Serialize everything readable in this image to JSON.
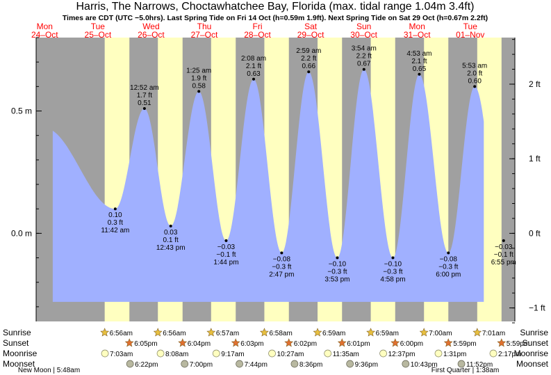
{
  "header": {
    "title": "Harris, The Narrows, Choctawhatchee Bay, Florida (max. tidal range 1.04m 3.4ft)",
    "subtitle": "Times are CDT (UTC −5.0hrs). Last Spring Tide on Fri 14 Oct (h=0.59m 1.9ft). Next Spring Tide on Sat 29 Oct (h=0.67m 2.2ft)"
  },
  "colors": {
    "night": "#a0a0a0",
    "day": "#ffffc0",
    "water": "#a0b0ff",
    "weekend_label": "#ff0000",
    "weekday_label": "#000000",
    "sunrise_star": "#e8c040",
    "sunset_star": "#e07030",
    "moonrise": "#ffffc0",
    "moonset": "#b8b8a0"
  },
  "days": [
    {
      "dow": "Mon",
      "date": "24–Oct",
      "weekend": true
    },
    {
      "dow": "Tue",
      "date": "25–Oct",
      "weekend": true
    },
    {
      "dow": "Wed",
      "date": "26–Oct",
      "weekend": true
    },
    {
      "dow": "Thu",
      "date": "27–Oct",
      "weekend": true
    },
    {
      "dow": "Fri",
      "date": "28–Oct",
      "weekend": true
    },
    {
      "dow": "Sat",
      "date": "29–Oct",
      "weekend": true
    },
    {
      "dow": "Sun",
      "date": "30–Oct",
      "weekend": true
    },
    {
      "dow": "Mon",
      "date": "31–Oct",
      "weekend": true
    },
    {
      "dow": "Tue",
      "date": "01–Nov",
      "weekend": true
    }
  ],
  "left_axis": [
    {
      "label": "0.5 m",
      "value": 0.5
    },
    {
      "label": "0.0 m",
      "value": 0.0
    }
  ],
  "right_axis": [
    {
      "label": "2 ft",
      "value": 2
    },
    {
      "label": "1 ft",
      "value": 1
    },
    {
      "label": "0 ft",
      "value": 0
    },
    {
      "label": "−1 ft",
      "value": -1
    }
  ],
  "chart_data": {
    "type": "area",
    "xlabel": "",
    "ylabel": "",
    "units": "m",
    "xlim_hours": [
      0,
      216
    ],
    "ylim_m": [
      -0.36,
      0.8
    ],
    "series": [
      {
        "name": "",
        "start_hours": 7.5,
        "end_hours": 202.0,
        "start_m": 0.33,
        "end_m": -0.03,
        "events": [
          {
            "type": "high",
            "hours": 3.8,
            "time": "",
            "m": 0.43,
            "m_label": "",
            "ft_label": "",
            "labeled": false
          },
          {
            "type": "low",
            "hours": 35.7,
            "time": "11:42 am",
            "m": 0.1,
            "m_label": "0.10 m",
            "ft_label": "0.3 ft",
            "labeled": true
          },
          {
            "type": "high",
            "hours": 48.87,
            "time": "12:52 am",
            "m": 0.51,
            "m_label": "0.51 m",
            "ft_label": "1.7 ft",
            "labeled": true
          },
          {
            "type": "low",
            "hours": 60.72,
            "time": "12:43 pm",
            "m": 0.03,
            "m_label": "0.03 m",
            "ft_label": "0.1 ft",
            "labeled": true
          },
          {
            "type": "high",
            "hours": 73.42,
            "time": "1:25 am",
            "m": 0.58,
            "m_label": "0.58 m",
            "ft_label": "1.9 ft",
            "labeled": true
          },
          {
            "type": "low",
            "hours": 85.73,
            "time": "1:44 pm",
            "m": -0.03,
            "m_label": "−0.03 m",
            "ft_label": "−0.1 ft",
            "labeled": true
          },
          {
            "type": "high",
            "hours": 98.13,
            "time": "2:08 am",
            "m": 0.63,
            "m_label": "0.63 m",
            "ft_label": "2.1 ft",
            "labeled": true
          },
          {
            "type": "low",
            "hours": 110.78,
            "time": "2:47 pm",
            "m": -0.08,
            "m_label": "−0.08 m",
            "ft_label": "−0.3 ft",
            "labeled": true
          },
          {
            "type": "high",
            "hours": 122.98,
            "time": "2:59 am",
            "m": 0.66,
            "m_label": "0.66 m",
            "ft_label": "2.2 ft",
            "labeled": true
          },
          {
            "type": "low",
            "hours": 135.88,
            "time": "3:53 pm",
            "m": -0.1,
            "m_label": "−0.10 m",
            "ft_label": "−0.3 ft",
            "labeled": true
          },
          {
            "type": "high",
            "hours": 147.9,
            "time": "3:54 am",
            "m": 0.67,
            "m_label": "0.67 m",
            "ft_label": "2.2 ft",
            "labeled": true
          },
          {
            "type": "low",
            "hours": 160.97,
            "time": "4:58 pm",
            "m": -0.1,
            "m_label": "−0.10 m",
            "ft_label": "−0.3 ft",
            "labeled": true
          },
          {
            "type": "high",
            "hours": 172.88,
            "time": "4:53 am",
            "m": 0.65,
            "m_label": "0.65 m",
            "ft_label": "2.1 ft",
            "labeled": true
          },
          {
            "type": "low",
            "hours": 186.0,
            "time": "6:00 pm",
            "m": -0.08,
            "m_label": "−0.08 m",
            "ft_label": "−0.3 ft",
            "labeled": true
          },
          {
            "type": "high",
            "hours": 197.88,
            "time": "5:53 am",
            "m": 0.6,
            "m_label": "0.60 m",
            "ft_label": "2.0 ft",
            "labeled": true
          },
          {
            "type": "low",
            "hours": 210.92,
            "time": "6:55 pm",
            "m": -0.03,
            "m_label": "−0.03 m",
            "ft_label": "−0.1 ft",
            "labeled": true
          }
        ]
      }
    ]
  },
  "sun": [
    {
      "rise": "6:56am",
      "rise_h": 30.93,
      "set": "6:05pm",
      "set_h": 42.08
    },
    {
      "rise": "6:56am",
      "rise_h": 54.93,
      "set": "6:04pm",
      "set_h": 66.07
    },
    {
      "rise": "6:57am",
      "rise_h": 78.95,
      "set": "6:03pm",
      "set_h": 90.05
    },
    {
      "rise": "6:58am",
      "rise_h": 102.97,
      "set": "6:02pm",
      "set_h": 114.03
    },
    {
      "rise": "6:59am",
      "rise_h": 126.98,
      "set": "6:01pm",
      "set_h": 138.02
    },
    {
      "rise": "6:59am",
      "rise_h": 150.98,
      "set": "6:00pm",
      "set_h": 162.0
    },
    {
      "rise": "7:00am",
      "rise_h": 175.0,
      "set": "5:59pm",
      "set_h": 185.98
    },
    {
      "rise": "7:01am",
      "rise_h": 199.02,
      "set": "5:59pm",
      "set_h": 209.98
    }
  ],
  "moonrise": [
    {
      "time": "7:03am",
      "h": 31.05
    },
    {
      "time": "8:08am",
      "h": 56.13
    },
    {
      "time": "9:17am",
      "h": 81.28
    },
    {
      "time": "10:27am",
      "h": 106.45
    },
    {
      "time": "11:35am",
      "h": 131.58
    },
    {
      "time": "12:37pm",
      "h": 156.62
    },
    {
      "time": "1:31pm",
      "h": 181.52
    },
    {
      "time": "2:17pm",
      "h": 206.28
    }
  ],
  "moonset": [
    {
      "time": "6:22pm",
      "h": 42.37
    },
    {
      "time": "7:00pm",
      "h": 67.0
    },
    {
      "time": "7:44pm",
      "h": 91.73
    },
    {
      "time": "8:36pm",
      "h": 116.6
    },
    {
      "time": "9:36pm",
      "h": 141.6
    },
    {
      "time": "10:43pm",
      "h": 166.72
    },
    {
      "time": "11:52pm",
      "h": 191.87
    }
  ],
  "row_labels": {
    "sunrise": "Sunrise",
    "sunset": "Sunset",
    "moonrise": "Moonrise",
    "moonset": "Moonset"
  },
  "moon_phases": [
    {
      "text": "New Moon | 5:48am",
      "h": 5.8
    },
    {
      "text": "First Quarter | 1:38am",
      "h": 193.6
    }
  ]
}
